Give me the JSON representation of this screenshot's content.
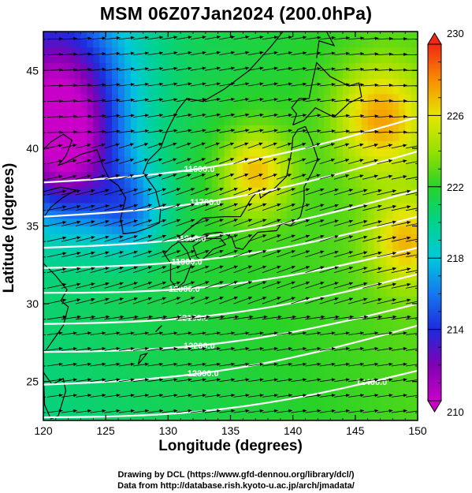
{
  "chart_data": {
    "type": "heatmap",
    "title": "MSM 06Z07Jan2024 (200.0hPa)",
    "xlabel": "Longitude (degrees)",
    "ylabel": "Latitude  (degrees)",
    "xlim": [
      120,
      150
    ],
    "ylim": [
      22.5,
      47.5
    ],
    "x_ticks": [
      "120",
      "125",
      "130",
      "135",
      "140",
      "145",
      "150"
    ],
    "y_ticks": [
      "25",
      "30",
      "35",
      "40",
      "45"
    ],
    "colorbar": {
      "range": [
        210,
        230
      ],
      "tick_labels": [
        "230",
        "226",
        "222",
        "218",
        "214",
        "210"
      ],
      "tick_values": [
        230,
        226,
        222,
        218,
        214,
        210
      ]
    },
    "height_contours": [
      {
        "label": "11600.0",
        "lat_at_120": 37.8,
        "lat_at_150": 42.0,
        "label_lon": 132.5
      },
      {
        "label": "11700.0",
        "lat_at_120": 35.6,
        "lat_at_150": 39.8,
        "label_lon": 133.0
      },
      {
        "label": "11800.0",
        "lat_at_120": 33.6,
        "lat_at_150": 37.3,
        "label_lon": 131.8
      },
      {
        "label": "11900.0",
        "lat_at_120": 32.3,
        "lat_at_150": 35.6,
        "label_lon": 131.5
      },
      {
        "label": "12000.0",
        "lat_at_120": 30.7,
        "lat_at_150": 33.6,
        "label_lon": 131.3
      },
      {
        "label": "12100.0",
        "lat_at_120": 28.7,
        "lat_at_150": 31.9,
        "label_lon": 132.0
      },
      {
        "label": "12200.0",
        "lat_at_120": 26.9,
        "lat_at_150": 30.0,
        "label_lon": 132.5
      },
      {
        "label": "12300.0",
        "lat_at_120": 24.8,
        "lat_at_150": 28.6,
        "label_lon": 132.8
      },
      {
        "label": "12400.0",
        "lat_at_120": 22.7,
        "lat_at_150": 25.7,
        "label_lon": 146.3
      }
    ],
    "temperature_features": [
      {
        "lon": 121,
        "lat": 44,
        "value": 213,
        "spread": 4
      },
      {
        "lon": 122,
        "lat": 39,
        "value": 215,
        "spread": 3
      },
      {
        "lon": 137,
        "lat": 38.5,
        "value": 227,
        "spread": 2
      },
      {
        "lon": 147,
        "lat": 42,
        "value": 227,
        "spread": 2.5
      },
      {
        "lon": 149,
        "lat": 34,
        "value": 226,
        "spread": 2
      },
      {
        "lon": 127,
        "lat": 36,
        "value": 217.5,
        "spread": 2
      }
    ],
    "background_value": 222,
    "wind": {
      "direction": "westerly"
    }
  },
  "credits": {
    "line1": "Drawing by DCL (https://www.gfd-dennou.org/library/dcl/)",
    "line2": "Data from http://database.rish.kyoto-u.ac.jp/arch/jmadata/"
  }
}
